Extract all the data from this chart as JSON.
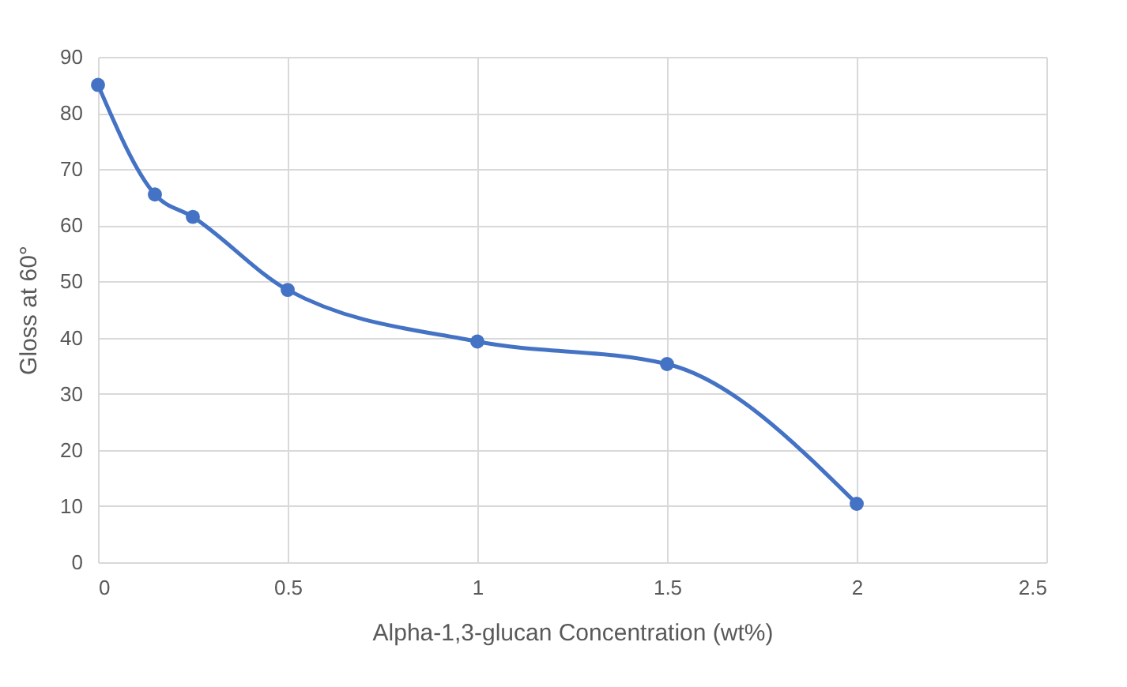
{
  "chart_data": {
    "type": "line",
    "xlabel": "Alpha-1,3-glucan Concentration (wt%)",
    "ylabel": "Gloss at 60°",
    "x": [
      0,
      0.15,
      0.25,
      0.5,
      1,
      1.5,
      2
    ],
    "series": [
      {
        "color": "#4472c4",
        "values": [
          85,
          65.5,
          61.5,
          48.5,
          39.3,
          35.3,
          10.4
        ]
      }
    ],
    "xlim": [
      0,
      2.5
    ],
    "xticks": [
      0,
      0.5,
      1,
      1.5,
      2,
      2.5
    ],
    "ylim": [
      0,
      90
    ],
    "yticks": [
      0,
      10,
      20,
      30,
      40,
      50,
      60,
      70,
      80,
      90
    ],
    "grid": true,
    "marker": "circle",
    "line_style": "solid"
  }
}
